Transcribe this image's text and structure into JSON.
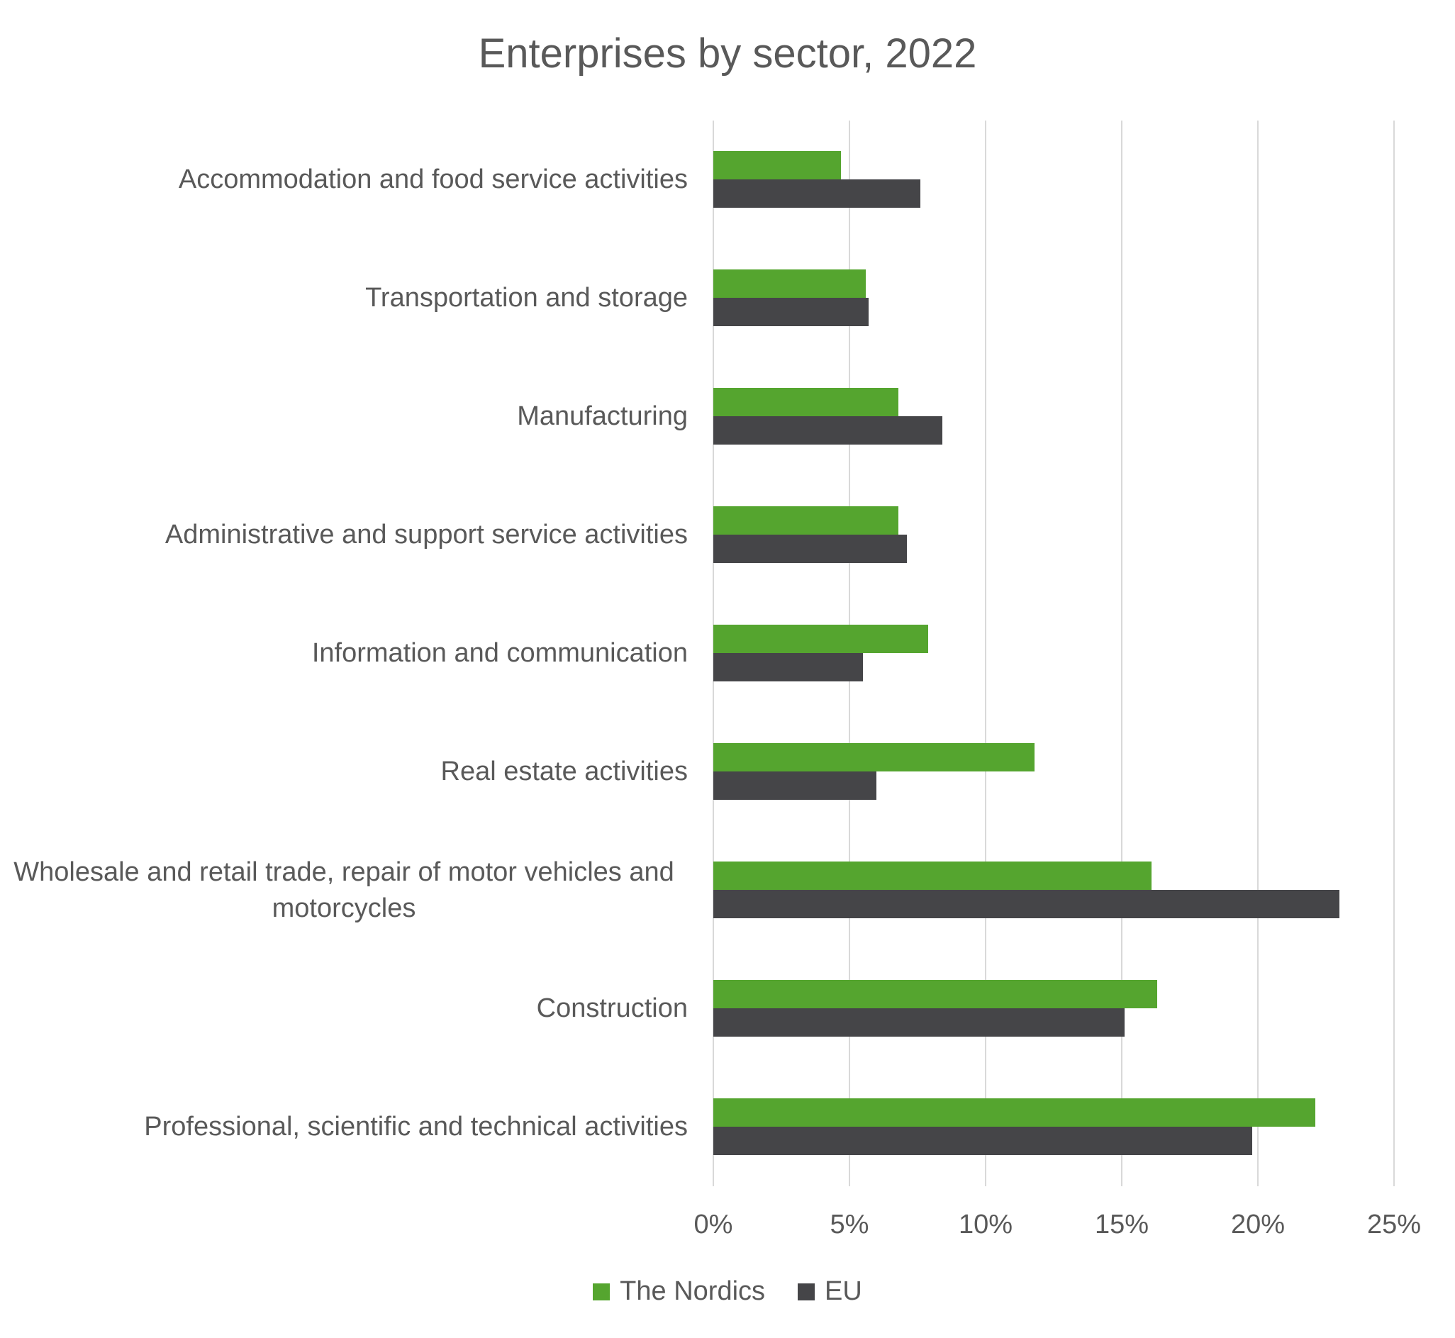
{
  "chart_data": {
    "type": "bar",
    "orientation": "horizontal",
    "title": "Enterprises by sector, 2022",
    "categories": [
      "Accommodation and food service activities",
      "Transportation and storage",
      "Manufacturing",
      "Administrative and support service activities",
      "Information and communication",
      "Real estate activities",
      "Wholesale and retail trade, repair of motor vehicles and motorcycles",
      "Construction",
      "Professional, scientific and technical activities"
    ],
    "series": [
      {
        "name": "The Nordics",
        "color": "#55A52F",
        "values": [
          4.7,
          5.6,
          6.8,
          6.8,
          7.9,
          11.8,
          16.1,
          16.3,
          22.1
        ]
      },
      {
        "name": "EU",
        "color": "#454548",
        "values": [
          7.6,
          5.7,
          8.4,
          7.1,
          5.5,
          6.0,
          23.0,
          15.1,
          19.8
        ]
      }
    ],
    "x_axis": {
      "min": 0,
      "max": 25,
      "unit": "%",
      "ticks": [
        "0%",
        "5%",
        "10%",
        "15%",
        "20%",
        "25%"
      ]
    },
    "grid": true,
    "legend_position": "bottom",
    "colors": {
      "text": "#595959",
      "gridline": "#D9D9D9",
      "background": "#FFFFFF"
    }
  }
}
